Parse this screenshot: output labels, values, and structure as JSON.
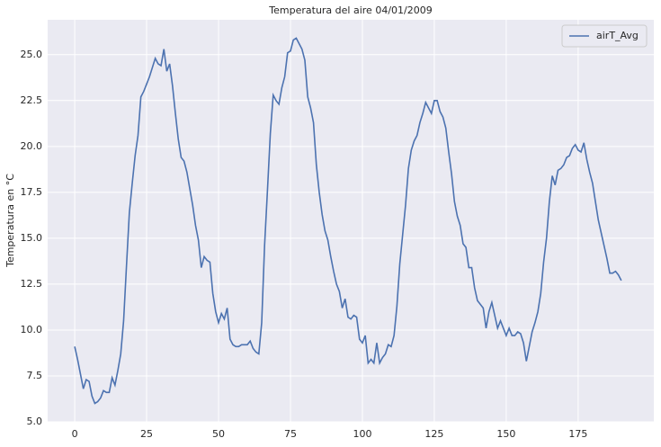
{
  "chart_data": {
    "type": "line",
    "title": "Temperatura del aire 04/01/2009",
    "y_label": "Temperatura en °C",
    "x": [
      0,
      1,
      2,
      3,
      4,
      5,
      6,
      7,
      8,
      9,
      10,
      11,
      12,
      13,
      14,
      15,
      16,
      17,
      18,
      19,
      20,
      21,
      22,
      23,
      24,
      25,
      26,
      27,
      28,
      29,
      30,
      31,
      32,
      33,
      34,
      35,
      36,
      37,
      38,
      39,
      40,
      41,
      42,
      43,
      44,
      45,
      46,
      47,
      48,
      49,
      50,
      51,
      52,
      53,
      54,
      55,
      56,
      57,
      58,
      59,
      60,
      61,
      62,
      63,
      64,
      65,
      66,
      67,
      68,
      69,
      70,
      71,
      72,
      73,
      74,
      75,
      76,
      77,
      78,
      79,
      80,
      81,
      82,
      83,
      84,
      85,
      86,
      87,
      88,
      89,
      90,
      91,
      92,
      93,
      94,
      95,
      96,
      97,
      98,
      99,
      100,
      101,
      102,
      103,
      104,
      105,
      106,
      107,
      108,
      109,
      110,
      111,
      112,
      113,
      114,
      115,
      116,
      117,
      118,
      119,
      120,
      121,
      122,
      123,
      124,
      125,
      126,
      127,
      128,
      129,
      130,
      131,
      132,
      133,
      134,
      135,
      136,
      137,
      138,
      139,
      140,
      141,
      142,
      143,
      144,
      145,
      146,
      147,
      148,
      149,
      150,
      151,
      152,
      153,
      154,
      155,
      156,
      157,
      158,
      159,
      160,
      161,
      162,
      163,
      164,
      165,
      166,
      167,
      168,
      169,
      170,
      171,
      172,
      173,
      174,
      175,
      176,
      177,
      178,
      179,
      180,
      181,
      182,
      183,
      184,
      185,
      186,
      187,
      188,
      189,
      190
    ],
    "series": [
      {
        "name": "airT_Avg",
        "color": "#4c72b0",
        "values": [
          9.1,
          8.4,
          7.6,
          6.8,
          7.3,
          7.2,
          6.4,
          6.0,
          6.1,
          6.3,
          6.7,
          6.6,
          6.6,
          7.4,
          7.0,
          7.8,
          8.7,
          10.5,
          13.5,
          16.4,
          18.0,
          19.5,
          20.6,
          22.7,
          23.0,
          23.4,
          23.8,
          24.3,
          24.8,
          24.5,
          24.4,
          25.3,
          24.1,
          24.5,
          23.3,
          21.8,
          20.4,
          19.4,
          19.2,
          18.6,
          17.7,
          16.8,
          15.7,
          14.9,
          13.4,
          14.0,
          13.8,
          13.7,
          12.0,
          11.0,
          10.4,
          10.9,
          10.6,
          11.2,
          9.5,
          9.2,
          9.1,
          9.1,
          9.2,
          9.2,
          9.2,
          9.4,
          9.0,
          8.8,
          8.7,
          10.4,
          14.6,
          17.6,
          20.7,
          22.8,
          22.5,
          22.3,
          23.2,
          23.8,
          25.1,
          25.2,
          25.8,
          25.9,
          25.6,
          25.3,
          24.7,
          22.7,
          22.1,
          21.3,
          19.0,
          17.5,
          16.3,
          15.4,
          14.9,
          14.0,
          13.2,
          12.5,
          12.1,
          11.2,
          11.7,
          10.7,
          10.6,
          10.8,
          10.7,
          9.5,
          9.3,
          9.7,
          8.2,
          8.4,
          8.2,
          9.3,
          8.2,
          8.5,
          8.7,
          9.2,
          9.1,
          9.7,
          11.3,
          13.6,
          15.2,
          16.8,
          18.8,
          19.8,
          20.3,
          20.6,
          21.3,
          21.8,
          22.4,
          22.1,
          21.8,
          22.5,
          22.5,
          21.9,
          21.6,
          21.0,
          19.7,
          18.5,
          17.0,
          16.2,
          15.7,
          14.7,
          14.5,
          13.4,
          13.4,
          12.3,
          11.6,
          11.4,
          11.2,
          10.1,
          11.0,
          11.5,
          10.8,
          10.1,
          10.5,
          10.1,
          9.7,
          10.1,
          9.7,
          9.7,
          9.9,
          9.8,
          9.3,
          8.3,
          9.1,
          9.9,
          10.4,
          11.0,
          12.0,
          13.7,
          15.0,
          17.0,
          18.4,
          17.9,
          18.7,
          18.8,
          19.0,
          19.4,
          19.5,
          19.9,
          20.1,
          19.8,
          19.7,
          20.2,
          19.3,
          18.6,
          18.0,
          17.0,
          16.0,
          15.3,
          14.6,
          13.9,
          13.1,
          13.1,
          13.2,
          13.0,
          12.7
        ]
      }
    ],
    "xlim": [
      -9.4,
      201.3
    ],
    "ylim": [
      5.0,
      26.9
    ],
    "xticks": [
      0,
      25,
      50,
      75,
      100,
      125,
      150,
      175
    ],
    "yticks": [
      {
        "value": 5,
        "label": "5.0"
      },
      {
        "value": 7.5,
        "label": "7.5"
      },
      {
        "value": 10,
        "label": "10.0"
      },
      {
        "value": 12.5,
        "label": "12.5"
      },
      {
        "value": 15,
        "label": "15.0"
      },
      {
        "value": 17.5,
        "label": "17.5"
      },
      {
        "value": 20,
        "label": "20.0"
      },
      {
        "value": 22.5,
        "label": "22.5"
      },
      {
        "value": 25,
        "label": "25.0"
      }
    ],
    "grid": true,
    "legend": "upper right"
  }
}
